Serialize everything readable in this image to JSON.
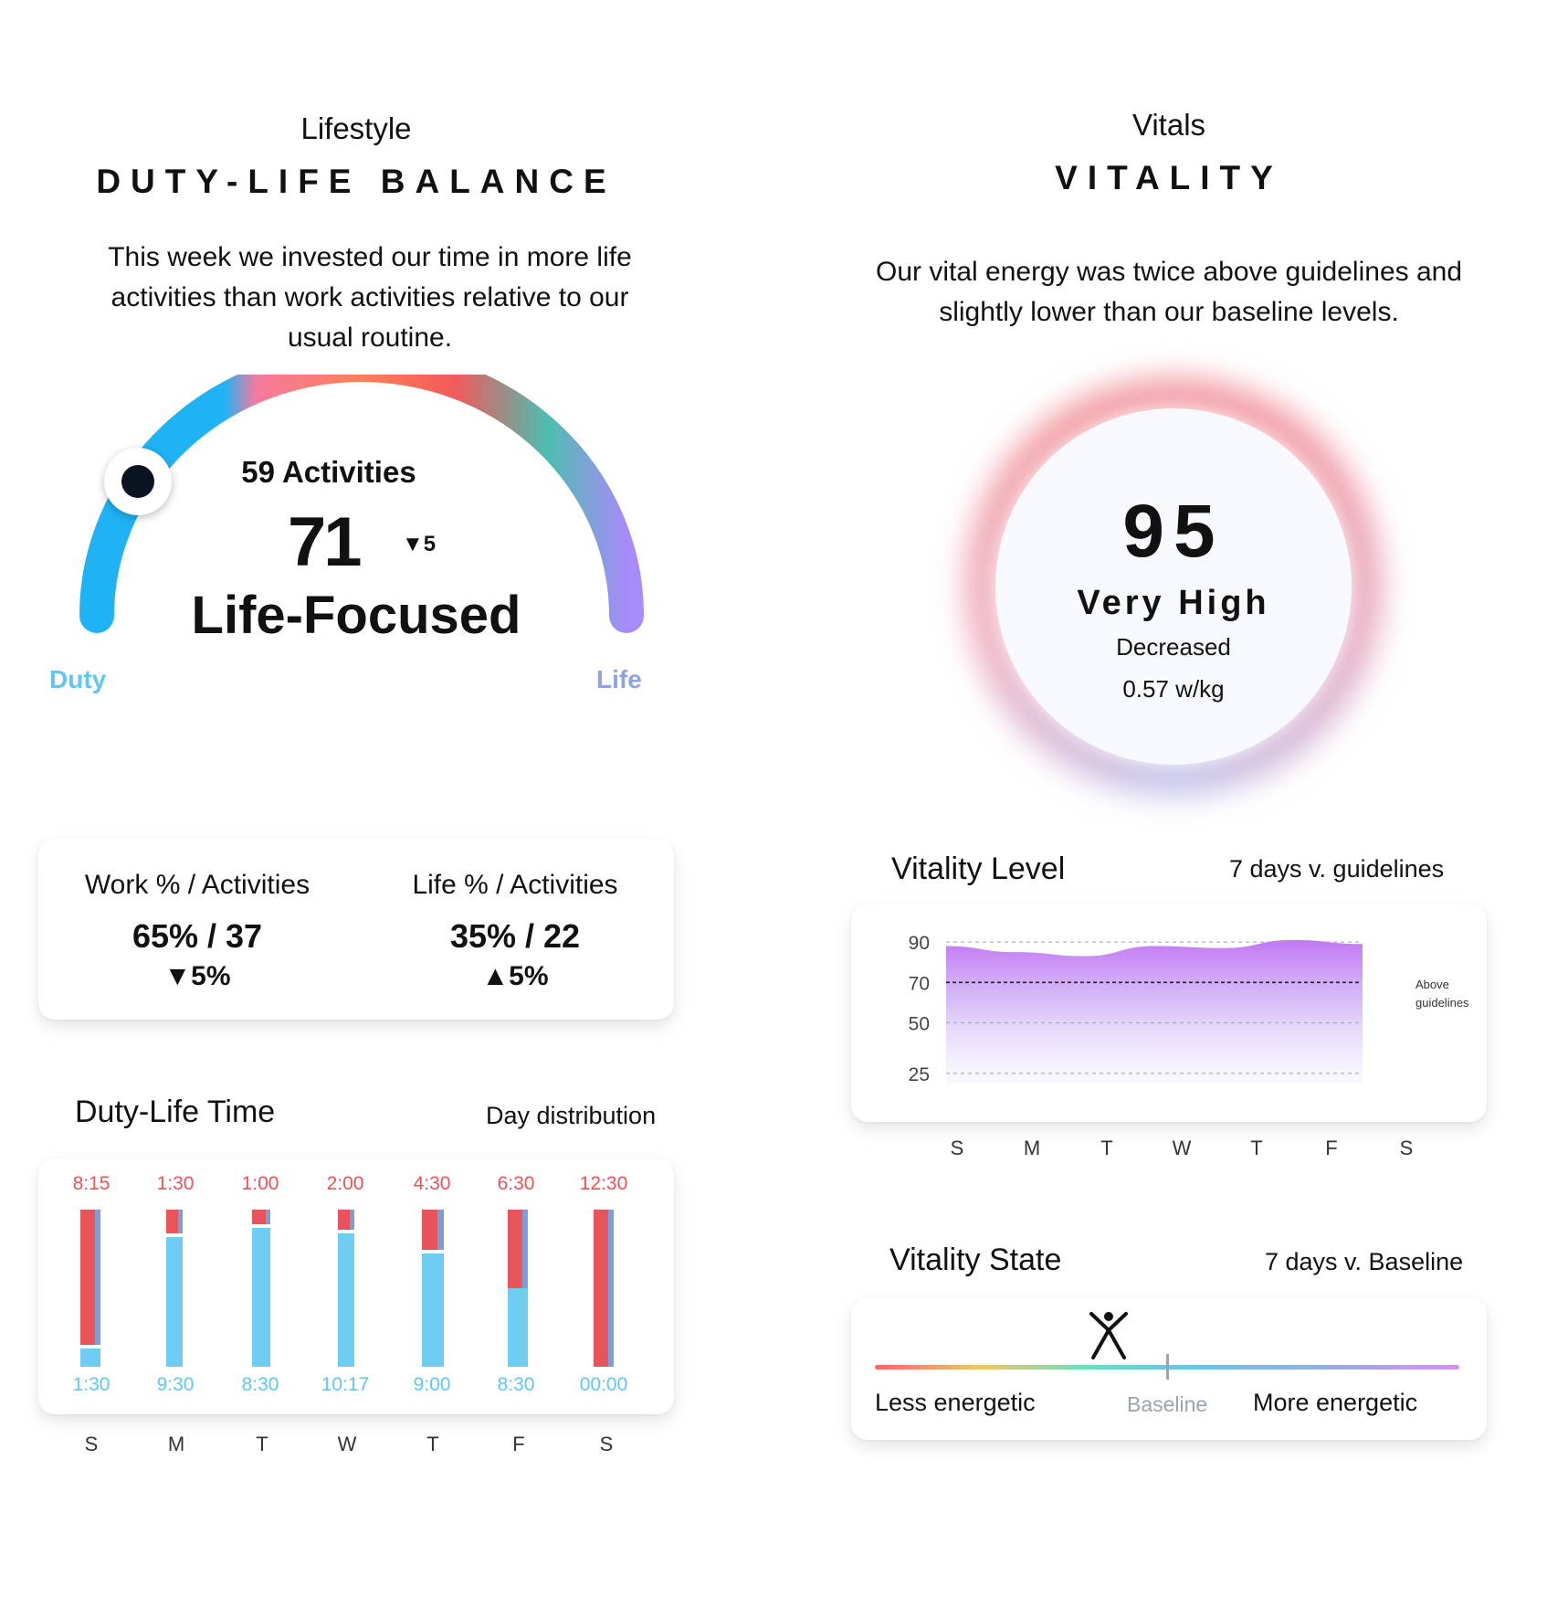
{
  "lifestyle": {
    "kicker": "Lifestyle",
    "title": "DUTY-LIFE BALANCE",
    "description": "This week we invested our time in more life activities than work activities relative to our usual routine.",
    "gauge": {
      "activities": "59 Activities",
      "score": "71",
      "delta": "▼5",
      "label": "Life-Focused",
      "left_label": "Duty",
      "right_label": "Life",
      "position": 0.18
    },
    "stats": {
      "work_label": "Work % / Activities",
      "work_value": "65% / 37",
      "work_delta": "▼5%",
      "life_label": "Life % / Activities",
      "life_value": "35% / 22",
      "life_delta": "▲5%"
    },
    "time_title": "Duty-Life Time",
    "time_subtitle": "Day distribution",
    "days": [
      "S",
      "M",
      "T",
      "W",
      "T",
      "F",
      "S"
    ],
    "bars": [
      {
        "top": "8:15",
        "bottom": "1:30"
      },
      {
        "top": "1:30",
        "bottom": "9:30"
      },
      {
        "top": "1:00",
        "bottom": "8:30"
      },
      {
        "top": "2:00",
        "bottom": "10:17"
      },
      {
        "top": "4:30",
        "bottom": "9:00"
      },
      {
        "top": "6:30",
        "bottom": "8:30"
      },
      {
        "top": "12:30",
        "bottom": "00:00"
      }
    ]
  },
  "vitals": {
    "kicker": "Vitals",
    "title": "VITALITY",
    "description": "Our vital energy was twice above guidelines and slightly lower than our baseline levels.",
    "ring": {
      "score": "95",
      "level": "Very High",
      "trend": "Decreased",
      "unit_value": "0.57 w/kg"
    },
    "level_title": "Vitality Level",
    "level_subtitle": "7 days v. guidelines",
    "annotation_line1": "Above",
    "annotation_line2": "guidelines",
    "days": [
      "S",
      "M",
      "T",
      "W",
      "T",
      "F",
      "S"
    ],
    "state_title": "Vitality State",
    "state_subtitle": "7 days v. Baseline",
    "state_less": "Less energetic",
    "state_baseline": "Baseline",
    "state_more": "More energetic",
    "state_position": 0.4
  },
  "colors": {
    "duty": "#5ec8f2",
    "life_red": "#e8545a",
    "blue": "#1fb3f5",
    "purple": "#a78bfa"
  },
  "chart_data": {
    "type": "area",
    "title": "Vitality Level",
    "x": [
      "S",
      "M",
      "T",
      "W",
      "T",
      "F",
      "S"
    ],
    "series": [
      {
        "values": [
          88,
          85,
          83,
          88,
          87,
          91,
          89
        ]
      }
    ],
    "yticks": [
      25,
      50,
      70,
      90
    ],
    "ylim": [
      20,
      95
    ],
    "reference_lines": [
      25,
      50,
      70,
      90
    ],
    "guideline": 70,
    "grid": true
  }
}
